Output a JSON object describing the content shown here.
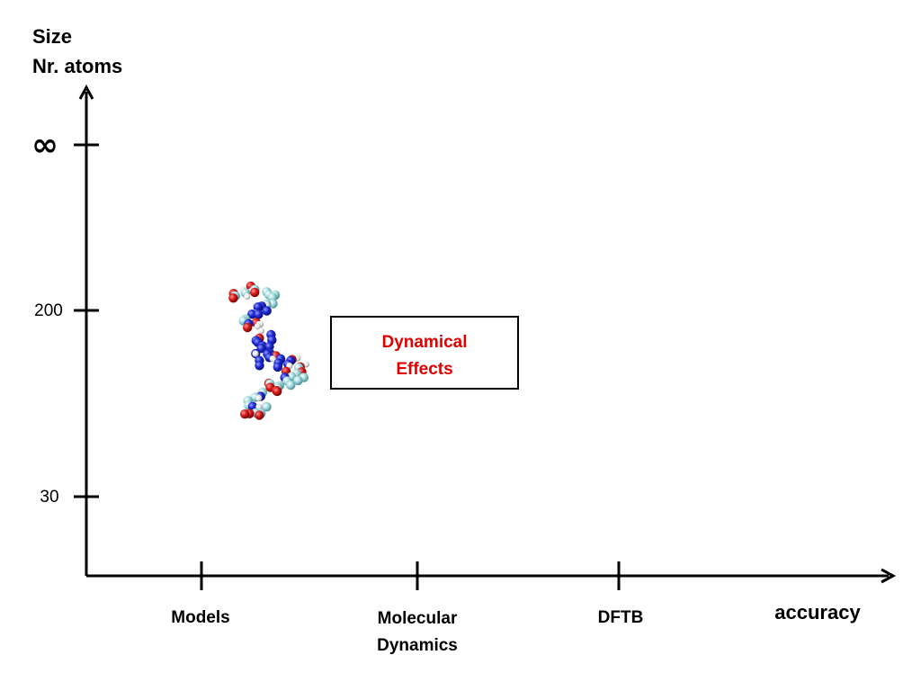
{
  "y_axis": {
    "title_line1": "Size",
    "title_line2": "Nr. atoms",
    "ticks": [
      "∞",
      "200",
      "30"
    ]
  },
  "x_axis": {
    "title": "accuracy",
    "categories": [
      {
        "line1": "Models",
        "line2": ""
      },
      {
        "line1": "Molecular",
        "line2": "Dynamics"
      },
      {
        "line1": "DFTB",
        "line2": ""
      }
    ]
  },
  "callout": {
    "line1": "Dynamical",
    "line2": "Effects",
    "text_color": "#e00000",
    "border_color": "#000000"
  },
  "molecule": {
    "icon": "peptide-molecule-icon",
    "atom_colors": {
      "carbon": "#a8dde0",
      "oxygen": "#d81c1c",
      "nitrogen": "#1f2ad6",
      "hydrogen": "#f2f2f2"
    }
  }
}
